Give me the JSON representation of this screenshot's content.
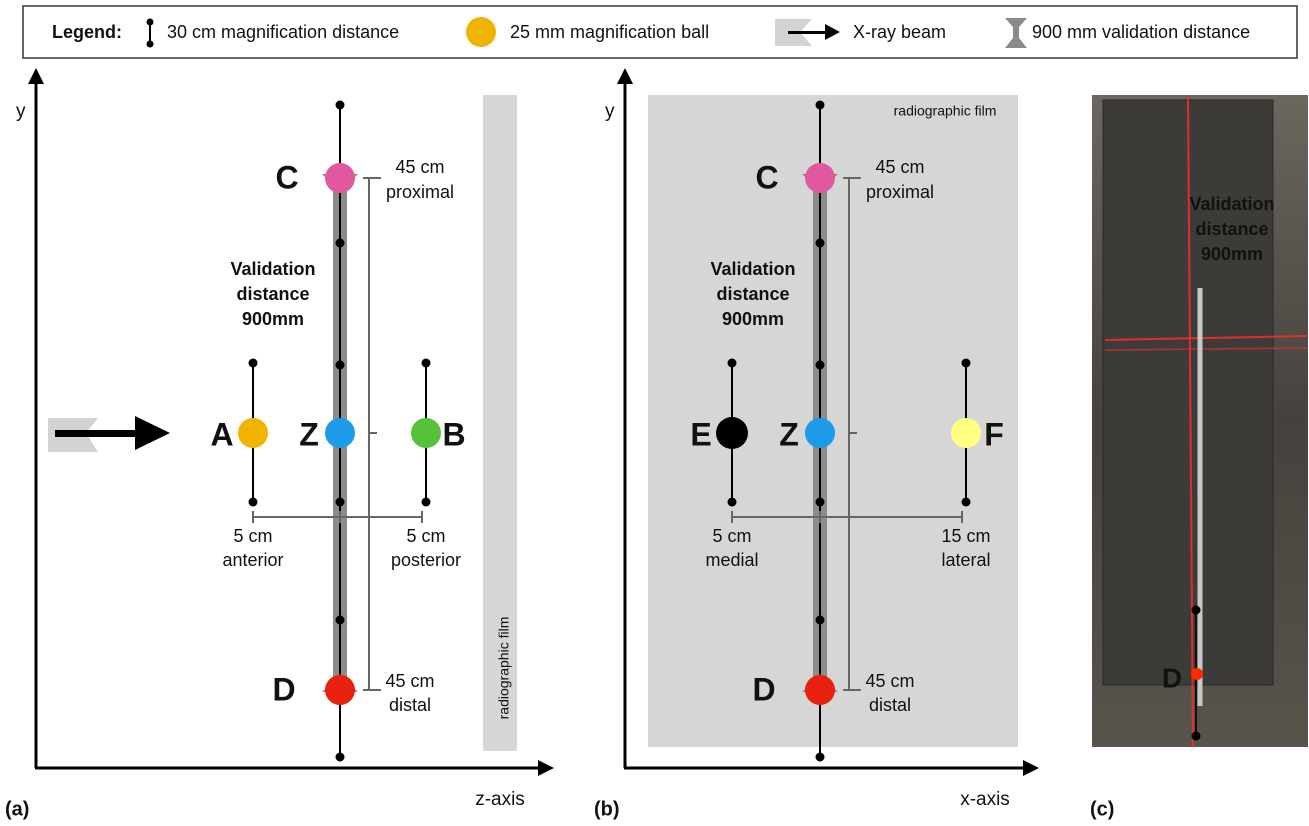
{
  "legend": {
    "label": "Legend:",
    "items": [
      "30 cm magnification distance",
      "25 mm magnification ball",
      "X-ray beam",
      "900 mm validation distance"
    ]
  },
  "panel_a": {
    "tag": "(a)",
    "y_axis": "y",
    "x_axis": "z-axis",
    "film": "radiographic film",
    "validation": [
      "Validation",
      "distance",
      "900mm"
    ],
    "balls": {
      "C": "C",
      "D": "D",
      "left": "A",
      "center": "Z",
      "right": "B"
    },
    "proximal": [
      "45 cm",
      "proximal"
    ],
    "distal": [
      "45 cm",
      "distal"
    ],
    "left_offset": [
      "5 cm",
      "anterior"
    ],
    "right_offset": [
      "5 cm",
      "posterior"
    ]
  },
  "panel_b": {
    "tag": "(b)",
    "y_axis": "y",
    "x_axis": "x-axis",
    "film": "radiographic film",
    "validation": [
      "Validation",
      "distance",
      "900mm"
    ],
    "balls": {
      "C": "C",
      "D": "D",
      "left": "E",
      "center": "Z",
      "right": "F"
    },
    "proximal": [
      "45 cm",
      "proximal"
    ],
    "distal": [
      "45 cm",
      "distal"
    ],
    "left_offset": [
      "5 cm",
      "medial"
    ],
    "right_offset": [
      "15 cm",
      "lateral"
    ]
  },
  "panel_c": {
    "tag": "(c)",
    "validation": [
      "Validation",
      "distance",
      "900mm"
    ],
    "ball": "D"
  }
}
